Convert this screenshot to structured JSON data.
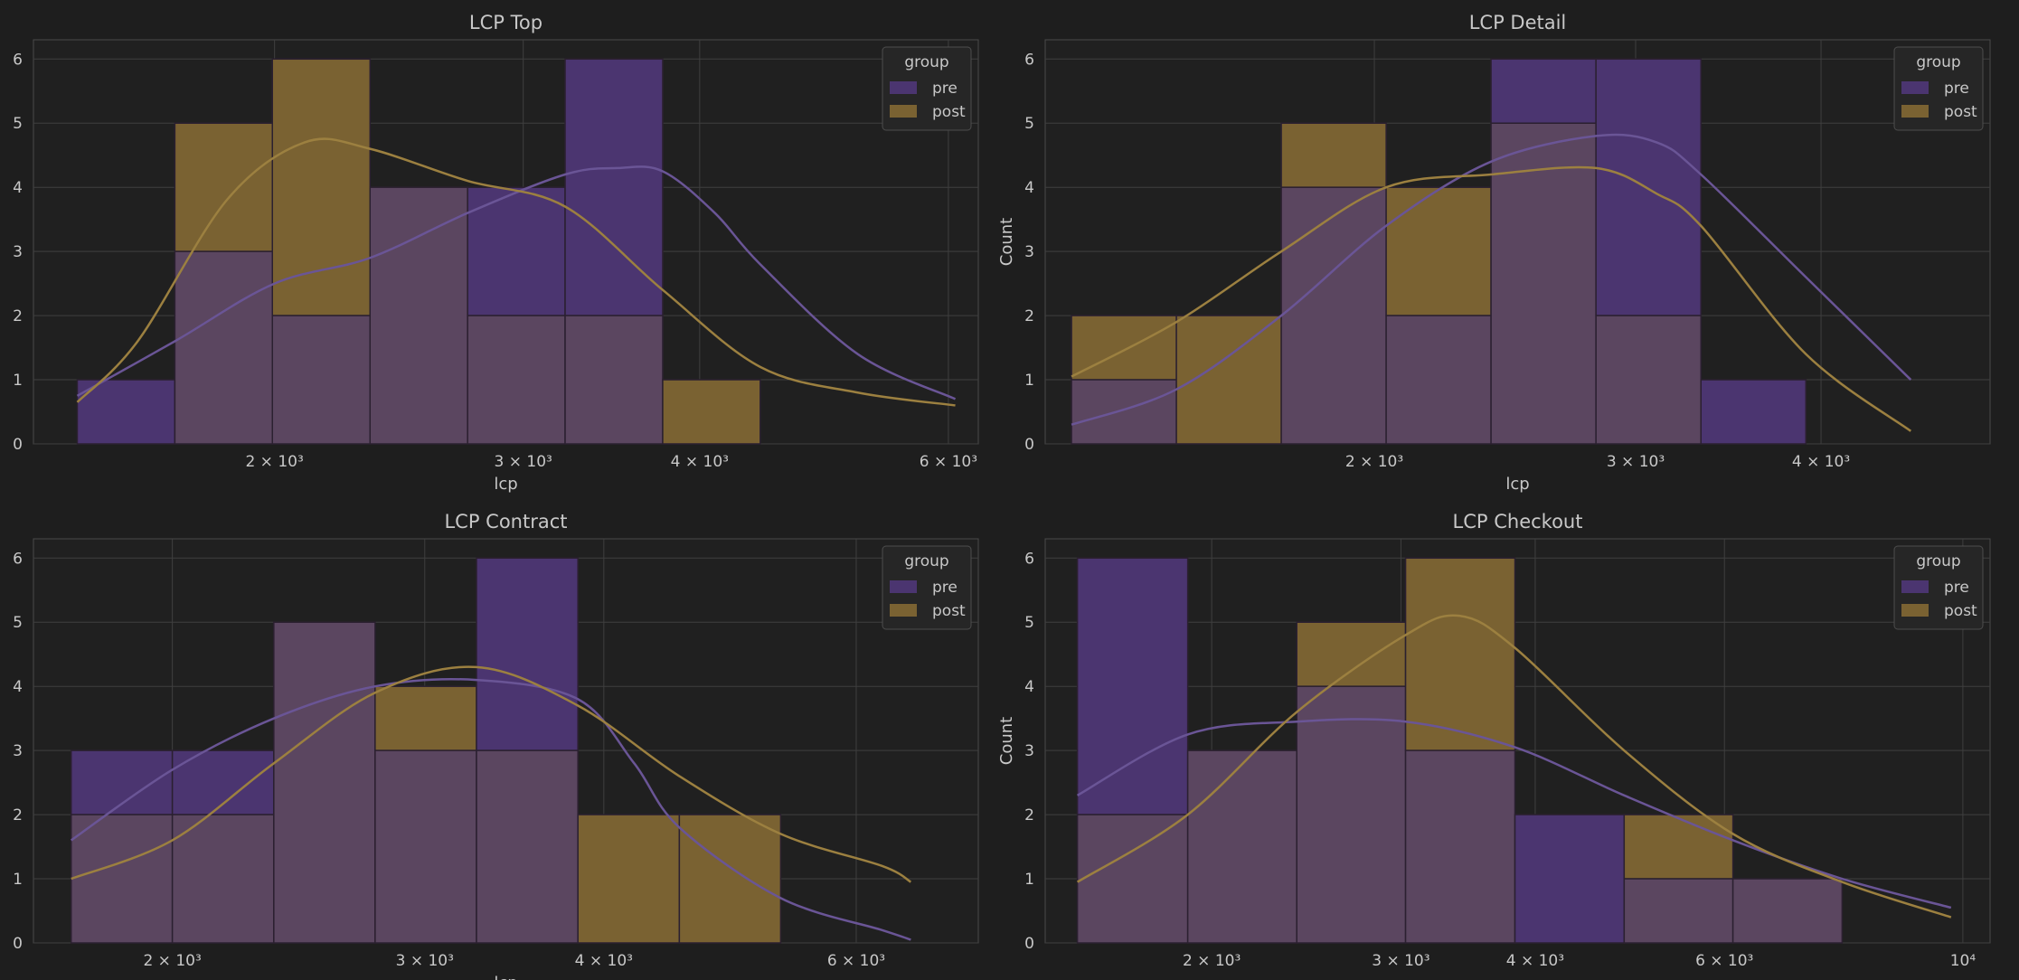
{
  "colors": {
    "background": "#1e1e1e",
    "axes_bg": "#202020",
    "grid": "#3f3f3f",
    "spine": "#4a4a4a",
    "text": "#c8c8c8",
    "pre": "#4b3570",
    "post": "#7a6232",
    "overlap": "#5b4660",
    "pre_kde": "#6a5596",
    "post_kde": "#9c8040",
    "bar_edge": "#2b2030"
  },
  "legend": {
    "title": "group",
    "labels": [
      "pre",
      "post"
    ]
  },
  "chart_data": [
    {
      "type": "histogram",
      "title": "LCP Top",
      "xlabel": "lcp",
      "ylabel": "",
      "xscale": "log",
      "xlim": [
        1350,
        6300
      ],
      "ylim": [
        0,
        6.3
      ],
      "yticks": [
        0,
        1,
        2,
        3,
        4,
        5,
        6
      ],
      "xticks": [
        {
          "value": 2000,
          "label": "2 × 10³"
        },
        {
          "value": 3000,
          "label": "3 × 10³"
        },
        {
          "value": 4000,
          "label": "4 × 10³"
        },
        {
          "value": 6000,
          "label": "6 × 10³"
        }
      ],
      "bin_edges": [
        1450,
        1700,
        1993,
        2337,
        2740,
        3212,
        3766,
        4415,
        5176,
        6068
      ],
      "series": [
        {
          "name": "pre",
          "values": [
            1,
            3,
            2,
            4,
            4,
            6,
            0,
            0,
            0
          ],
          "kde": [
            [
              1450,
              0.75
            ],
            [
              1700,
              1.6
            ],
            [
              2000,
              2.5
            ],
            [
              2337,
              2.9
            ],
            [
              2740,
              3.6
            ],
            [
              3212,
              4.2
            ],
            [
              3500,
              4.3
            ],
            [
              3766,
              4.25
            ],
            [
              4100,
              3.6
            ],
            [
              4415,
              2.8
            ],
            [
              5176,
              1.4
            ],
            [
              6068,
              0.7
            ]
          ]
        },
        {
          "name": "post",
          "values": [
            0,
            5,
            6,
            4,
            2,
            2,
            1,
            0,
            0
          ],
          "kde": [
            [
              1450,
              0.65
            ],
            [
              1600,
              1.6
            ],
            [
              1850,
              3.8
            ],
            [
              2100,
              4.7
            ],
            [
              2337,
              4.6
            ],
            [
              2740,
              4.1
            ],
            [
              3212,
              3.7
            ],
            [
              3766,
              2.4
            ],
            [
              4415,
              1.2
            ],
            [
              5176,
              0.8
            ],
            [
              6068,
              0.6
            ]
          ]
        }
      ]
    },
    {
      "type": "histogram",
      "title": "LCP Detail",
      "xlabel": "lcp",
      "ylabel": "Count",
      "xscale": "log",
      "xlim": [
        1200,
        5200
      ],
      "ylim": [
        0,
        6.3
      ],
      "yticks": [
        0,
        1,
        2,
        3,
        4,
        5,
        6
      ],
      "xticks": [
        {
          "value": 2000,
          "label": "2 × 10³"
        },
        {
          "value": 3000,
          "label": "3 × 10³"
        },
        {
          "value": 4000,
          "label": "4 × 10³"
        }
      ],
      "bin_edges": [
        1250,
        1471,
        1731,
        2037,
        2397,
        2821,
        3320,
        3907,
        4598
      ],
      "series": [
        {
          "name": "pre",
          "values": [
            1,
            0,
            4,
            2,
            6,
            6,
            1,
            0
          ],
          "kde": [
            [
              1250,
              0.3
            ],
            [
              1471,
              0.85
            ],
            [
              1731,
              2.0
            ],
            [
              2037,
              3.4
            ],
            [
              2397,
              4.4
            ],
            [
              2821,
              4.8
            ],
            [
              3100,
              4.7
            ],
            [
              3320,
              4.2
            ],
            [
              3907,
              2.6
            ],
            [
              4598,
              1.0
            ]
          ]
        },
        {
          "name": "post",
          "values": [
            2,
            2,
            5,
            4,
            5,
            2,
            0,
            0
          ],
          "kde": [
            [
              1250,
              1.05
            ],
            [
              1471,
              1.9
            ],
            [
              1731,
              3.0
            ],
            [
              2037,
              4.0
            ],
            [
              2397,
              4.2
            ],
            [
              2821,
              4.3
            ],
            [
              3100,
              3.9
            ],
            [
              3320,
              3.4
            ],
            [
              3907,
              1.4
            ],
            [
              4598,
              0.2
            ]
          ]
        }
      ]
    },
    {
      "type": "histogram",
      "title": "LCP Contract",
      "xlabel": "lcp",
      "ylabel": "",
      "xscale": "log",
      "xlim": [
        1600,
        7300
      ],
      "ylim": [
        0,
        6.3
      ],
      "yticks": [
        0,
        1,
        2,
        3,
        4,
        5,
        6
      ],
      "xticks": [
        {
          "value": 2000,
          "label": "2 × 10³"
        },
        {
          "value": 3000,
          "label": "3 × 10³"
        },
        {
          "value": 4000,
          "label": "4 × 10³"
        },
        {
          "value": 6000,
          "label": "6 × 10³"
        }
      ],
      "bin_edges": [
        1700,
        2000,
        2354,
        2770,
        3260,
        3837,
        4516,
        5314,
        6254,
        7000
      ],
      "series": [
        {
          "name": "pre",
          "values": [
            3,
            3,
            5,
            3,
            6,
            0,
            0,
            0,
            0
          ],
          "kde": [
            [
              1700,
              1.6
            ],
            [
              2000,
              2.7
            ],
            [
              2354,
              3.5
            ],
            [
              2770,
              4.0
            ],
            [
              3260,
              4.1
            ],
            [
              3837,
              3.8
            ],
            [
              4200,
              2.8
            ],
            [
              4516,
              1.8
            ],
            [
              5314,
              0.7
            ],
            [
              6254,
              0.2
            ],
            [
              6550,
              0.05
            ]
          ]
        },
        {
          "name": "post",
          "values": [
            2,
            2,
            5,
            4,
            3,
            2,
            2,
            0,
            0
          ],
          "kde": [
            [
              1700,
              1.0
            ],
            [
              2000,
              1.6
            ],
            [
              2354,
              2.8
            ],
            [
              2770,
              3.9
            ],
            [
              3260,
              4.3
            ],
            [
              3837,
              3.7
            ],
            [
              4516,
              2.6
            ],
            [
              5314,
              1.7
            ],
            [
              6254,
              1.2
            ],
            [
              6550,
              0.95
            ]
          ]
        }
      ]
    },
    {
      "type": "histogram",
      "title": "LCP Checkout",
      "xlabel": "",
      "ylabel": "Count",
      "xscale": "log",
      "xlim": [
        1400,
        10600
      ],
      "ylim": [
        0,
        6.3
      ],
      "yticks": [
        0,
        1,
        2,
        3,
        4,
        5,
        6
      ],
      "xticks": [
        {
          "value": 2000,
          "label": "2 × 10³"
        },
        {
          "value": 3000,
          "label": "3 × 10³"
        },
        {
          "value": 4000,
          "label": "4 × 10³"
        },
        {
          "value": 6000,
          "label": "6 × 10³"
        },
        {
          "value": 10000,
          "label": "10⁴"
        }
      ],
      "bin_edges": [
        1500,
        1900,
        2400,
        3030,
        3830,
        4840,
        6110,
        7720,
        9750
      ],
      "series": [
        {
          "name": "pre",
          "values": [
            6,
            3,
            4,
            3,
            2,
            1,
            1,
            0
          ],
          "kde": [
            [
              1500,
              2.3
            ],
            [
              1900,
              3.25
            ],
            [
              2400,
              3.45
            ],
            [
              3030,
              3.45
            ],
            [
              3830,
              3.05
            ],
            [
              4840,
              2.3
            ],
            [
              6110,
              1.6
            ],
            [
              7720,
              1.0
            ],
            [
              9750,
              0.55
            ]
          ]
        },
        {
          "name": "post",
          "values": [
            2,
            3,
            5,
            6,
            0,
            2,
            1,
            0
          ],
          "kde": [
            [
              1500,
              0.95
            ],
            [
              1900,
              2.0
            ],
            [
              2400,
              3.6
            ],
            [
              3030,
              4.8
            ],
            [
              3400,
              5.1
            ],
            [
              3830,
              4.6
            ],
            [
              4840,
              3.0
            ],
            [
              6110,
              1.7
            ],
            [
              7720,
              0.95
            ],
            [
              9750,
              0.4
            ]
          ]
        }
      ]
    }
  ]
}
